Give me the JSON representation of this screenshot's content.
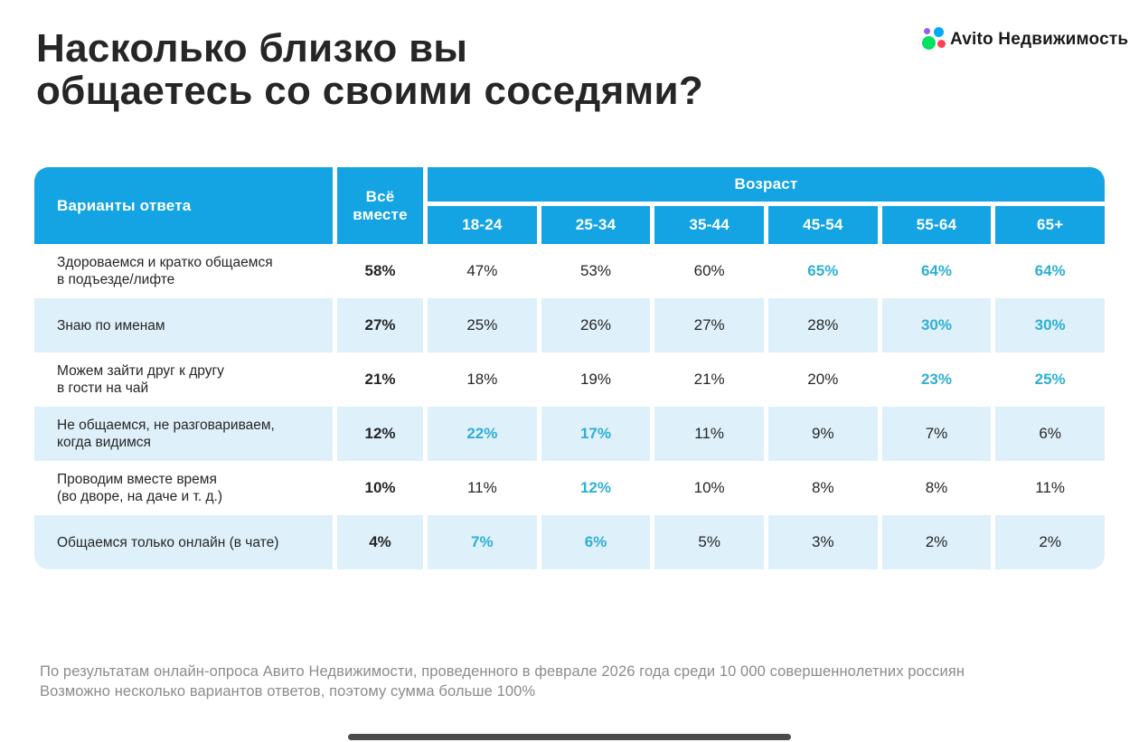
{
  "title": {
    "line1": "Насколько близко вы",
    "line2": "общаетесь со своими соседями?"
  },
  "logo": {
    "text": "Avito Недвижимость"
  },
  "table": {
    "answers_header": "Варианты ответа",
    "total_header": "Всё вместе",
    "age_group_header": "Возраст",
    "age_columns": [
      "18-24",
      "25-34",
      "35-44",
      "45-54",
      "55-64",
      "65+"
    ],
    "rows": [
      {
        "label_lines": [
          "Здороваемся и кратко общаемся",
          "в подъезде/лифте"
        ],
        "total": "58%",
        "values": [
          "47%",
          "53%",
          "60%",
          "65%",
          "64%",
          "64%"
        ],
        "highlights": [
          false,
          false,
          false,
          true,
          true,
          true
        ]
      },
      {
        "label_lines": [
          "Знаю по именам"
        ],
        "total": "27%",
        "values": [
          "25%",
          "26%",
          "27%",
          "28%",
          "30%",
          "30%"
        ],
        "highlights": [
          false,
          false,
          false,
          false,
          true,
          true
        ]
      },
      {
        "label_lines": [
          "Можем зайти друг к другу",
          "в гости на чай"
        ],
        "total": "21%",
        "values": [
          "18%",
          "19%",
          "21%",
          "20%",
          "23%",
          "25%"
        ],
        "highlights": [
          false,
          false,
          false,
          false,
          true,
          true
        ]
      },
      {
        "label_lines": [
          "Не общаемся, не разговариваем,",
          "когда видимся"
        ],
        "total": "12%",
        "values": [
          "22%",
          "17%",
          "11%",
          "9%",
          "7%",
          "6%"
        ],
        "highlights": [
          true,
          true,
          false,
          false,
          false,
          false
        ]
      },
      {
        "label_lines": [
          "Проводим вместе время",
          "(во дворе, на даче и т. д.)"
        ],
        "total": "10%",
        "values": [
          "11%",
          "12%",
          "10%",
          "8%",
          "8%",
          "11%"
        ],
        "highlights": [
          false,
          true,
          false,
          false,
          false,
          false
        ]
      },
      {
        "label_lines": [
          "Общаемся только онлайн (в чате)"
        ],
        "total": "4%",
        "values": [
          "7%",
          "6%",
          "5%",
          "3%",
          "2%",
          "2%"
        ],
        "highlights": [
          true,
          true,
          false,
          false,
          false,
          false
        ]
      }
    ]
  },
  "footer": {
    "line1": "По результатам онлайн-опроса Авито Недвижимости, проведенного в феврале 2026 года среди 10 000 совершеннолетних россиян",
    "line2": "Возможно несколько вариантов ответов, поэтому сумма больше 100%"
  },
  "colors": {
    "header_blue": "#14a4e3",
    "row_alt_blue": "#def0fa",
    "highlight_teal": "#2fafd3",
    "text_dark": "#262626",
    "footer_gray": "#8c8c8c",
    "indicator_dark": "#4b4b4b",
    "logo_green": "#04e061",
    "logo_blue": "#00aaff",
    "logo_red": "#ff4053",
    "logo_purple": "#965eeb"
  },
  "chart_data": {
    "type": "table",
    "title": "Насколько близко вы общаетесь со своими соседями?",
    "columns": [
      "Варианты ответа",
      "Всё вместе",
      "18-24",
      "25-34",
      "35-44",
      "45-54",
      "55-64",
      "65+"
    ],
    "units": "%",
    "rows": [
      [
        "Здороваемся и кратко общаемся в подъезде/лифте",
        58,
        47,
        53,
        60,
        65,
        64,
        64
      ],
      [
        "Знаю по именам",
        27,
        25,
        26,
        27,
        28,
        30,
        30
      ],
      [
        "Можем зайти друг к другу в гости на чай",
        21,
        18,
        19,
        21,
        20,
        23,
        25
      ],
      [
        "Не общаемся, не разговариваем, когда видимся",
        12,
        22,
        17,
        11,
        9,
        7,
        6
      ],
      [
        "Проводим вместе время (во дворе, на даче и т. д.)",
        10,
        11,
        12,
        10,
        8,
        8,
        11
      ],
      [
        "Общаемся только онлайн (в чате)",
        4,
        7,
        6,
        5,
        3,
        2,
        2
      ]
    ]
  }
}
